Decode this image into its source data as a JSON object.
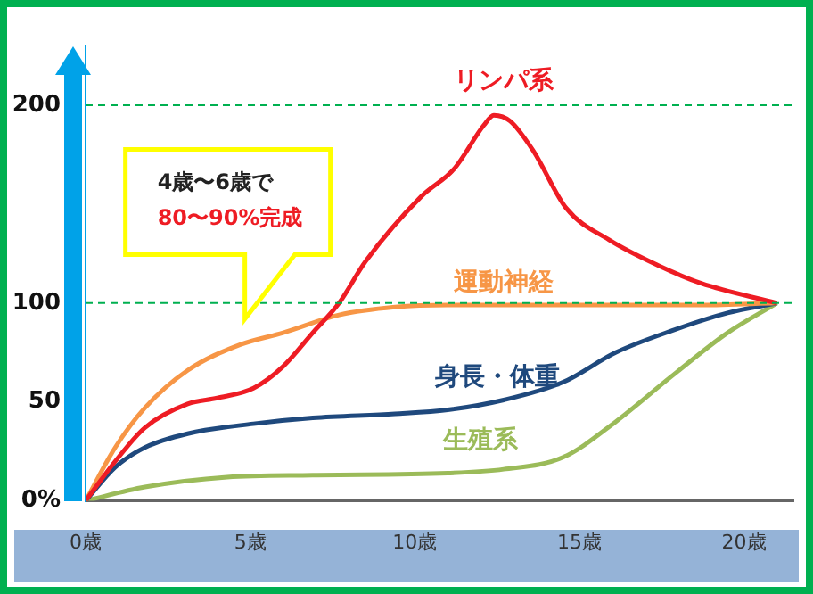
{
  "chart_data": {
    "type": "line",
    "xlim": [
      0,
      21.5
    ],
    "ylim": [
      0,
      230
    ],
    "xticks": [
      {
        "value": 0,
        "label": "0歳"
      },
      {
        "value": 5,
        "label": "5歳"
      },
      {
        "value": 10,
        "label": "10歳"
      },
      {
        "value": 15,
        "label": "15歳"
      },
      {
        "value": 20,
        "label": "20歳"
      }
    ],
    "yticks": [
      {
        "value": 0,
        "label": "0%"
      },
      50,
      100,
      200
    ],
    "series": [
      {
        "name": "リンパ系",
        "color": "#ee1c24",
        "x": [
          0,
          0.9,
          1.8,
          3.1,
          4,
          5.1,
          6,
          6.9,
          7.7,
          8.5,
          10.2,
          11.2,
          12.1,
          12.4,
          12.9,
          13.6,
          14.6,
          15.9,
          17.4,
          18.7,
          21
        ],
        "values": [
          0,
          20,
          37,
          49,
          52,
          57,
          68,
          85,
          100,
          121,
          154,
          168,
          190,
          195,
          192,
          177,
          148,
          132,
          119,
          110,
          100
        ]
      },
      {
        "name": "運動神経",
        "color": "#f79646",
        "x": [
          0,
          0.9,
          1.8,
          3.1,
          4.7,
          6,
          7.7,
          9.4,
          11,
          13.6,
          18.7,
          21
        ],
        "values": [
          0,
          27,
          47,
          66,
          79,
          85,
          94,
          98,
          99,
          99,
          99,
          100
        ]
      },
      {
        "name": "身長・体重",
        "color": "#1f497d",
        "x": [
          0,
          0.9,
          1.8,
          3.1,
          5.1,
          6.9,
          9.4,
          11,
          12.7,
          14.5,
          16.1,
          17.8,
          19.5,
          21
        ],
        "values": [
          0,
          17,
          27,
          34,
          39,
          42,
          44,
          46,
          51,
          60,
          75,
          86,
          95,
          100
        ]
      },
      {
        "name": "生殖系",
        "color": "#9bbb59",
        "x": [
          0,
          1.8,
          4.3,
          6.9,
          11,
          12.7,
          14.5,
          16.1,
          17.8,
          19.5,
          21
        ],
        "values": [
          0,
          7,
          12,
          13,
          14,
          16,
          22,
          40,
          63,
          85,
          100
        ]
      }
    ],
    "ref_lines": [
      {
        "axis": "y",
        "value": 100,
        "color": "#00b050",
        "line_style": "dashed"
      },
      {
        "axis": "y",
        "value": 200,
        "color": "#00b050",
        "line_style": "dashed"
      }
    ],
    "marker": "none",
    "line_style": "solid",
    "legend": false,
    "grid": false,
    "annotations": [
      "4歳〜6歳で",
      "80〜90%完成"
    ]
  }
}
